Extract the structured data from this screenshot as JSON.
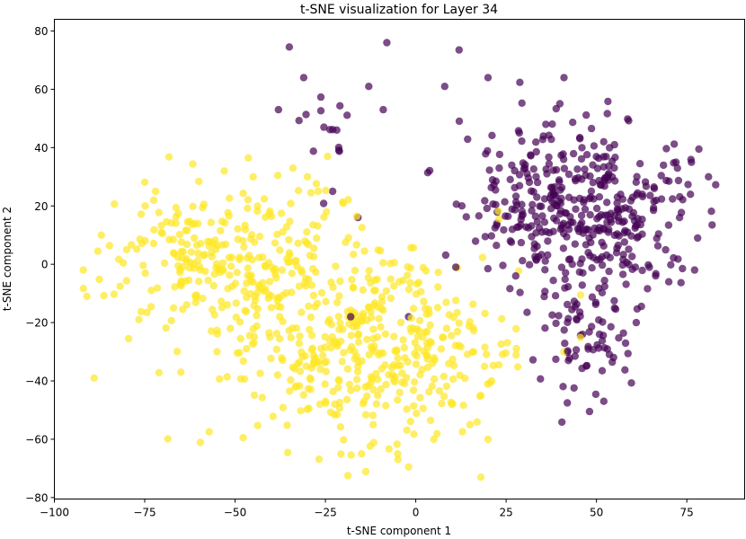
{
  "chart_data": {
    "type": "scatter",
    "title": "t-SNE visualization for Layer 34",
    "xlabel": "t-SNE component 1",
    "ylabel": "t-SNE component 2",
    "xlim": [
      -100,
      91
    ],
    "ylim": [
      -80.5,
      84
    ],
    "xticks": [
      -100,
      -75,
      -50,
      -25,
      0,
      25,
      50,
      75
    ],
    "yticks": [
      -80,
      -60,
      -40,
      -20,
      0,
      20,
      40,
      60,
      80
    ],
    "grid": false,
    "legend": "none",
    "colors": {
      "class_0": "#440154",
      "class_1": "#fde725"
    },
    "series": [
      {
        "color_key": "class_0",
        "clusters": [
          {
            "cx": 45,
            "cy": 18,
            "sx": 18,
            "sy": 17,
            "n": 410
          },
          {
            "cx": 46,
            "cy": -25,
            "sx": 8,
            "sy": 11,
            "n": 70
          },
          {
            "cx": -25,
            "cy": 45,
            "sx": 5,
            "sy": 9,
            "n": 15
          }
        ],
        "points": [
          [
            -35,
            74.5
          ],
          [
            -8,
            76
          ],
          [
            12,
            73.5
          ],
          [
            -31,
            64
          ],
          [
            81,
            30
          ],
          [
            82,
            13.5
          ],
          [
            -38,
            53
          ],
          [
            73,
            16
          ],
          [
            66,
            26
          ],
          [
            -18,
            -18
          ],
          [
            -2,
            -18
          ],
          [
            36,
            48
          ],
          [
            41,
            64
          ],
          [
            52,
            42
          ],
          [
            55,
            41
          ],
          [
            72,
            35
          ],
          [
            76,
            24
          ],
          [
            78,
            9
          ],
          [
            55,
            -15
          ],
          [
            61,
            -20
          ],
          [
            70,
            -6
          ],
          [
            -16,
            16
          ],
          [
            -23,
            25
          ],
          [
            -9,
            53
          ],
          [
            -13,
            61
          ],
          [
            20,
            64
          ],
          [
            8,
            61
          ]
        ]
      },
      {
        "color_key": "class_1",
        "clusters": [
          {
            "cx": -54,
            "cy": 1,
            "sx": 17,
            "sy": 14,
            "n": 250
          },
          {
            "cx": -14,
            "cy": -28,
            "sx": 22,
            "sy": 20,
            "n": 440
          }
        ],
        "points": [
          [
            -91,
            -11
          ],
          [
            -89,
            -39
          ],
          [
            -88,
            4.5
          ],
          [
            -72,
            25
          ],
          [
            -53,
            32
          ],
          [
            -34,
            33
          ],
          [
            -29,
            24.5
          ],
          [
            -27,
            25
          ],
          [
            -2,
            -69.5
          ],
          [
            18,
            -73
          ],
          [
            23,
            -34.5
          ],
          [
            41,
            -30
          ],
          [
            23,
            15.5
          ],
          [
            -87,
            10
          ],
          [
            -80,
            5
          ],
          [
            -65,
            -37
          ],
          [
            -55,
            -30
          ],
          [
            -45,
            30
          ],
          [
            -30,
            30
          ],
          [
            15,
            -55
          ],
          [
            20,
            -60
          ],
          [
            21,
            -40
          ],
          [
            18,
            -45
          ],
          [
            -5,
            -65
          ],
          [
            -15,
            -65
          ],
          [
            5,
            -60
          ],
          [
            10,
            -48
          ],
          [
            16,
            -30
          ],
          [
            19,
            -35
          ]
        ]
      }
    ]
  }
}
